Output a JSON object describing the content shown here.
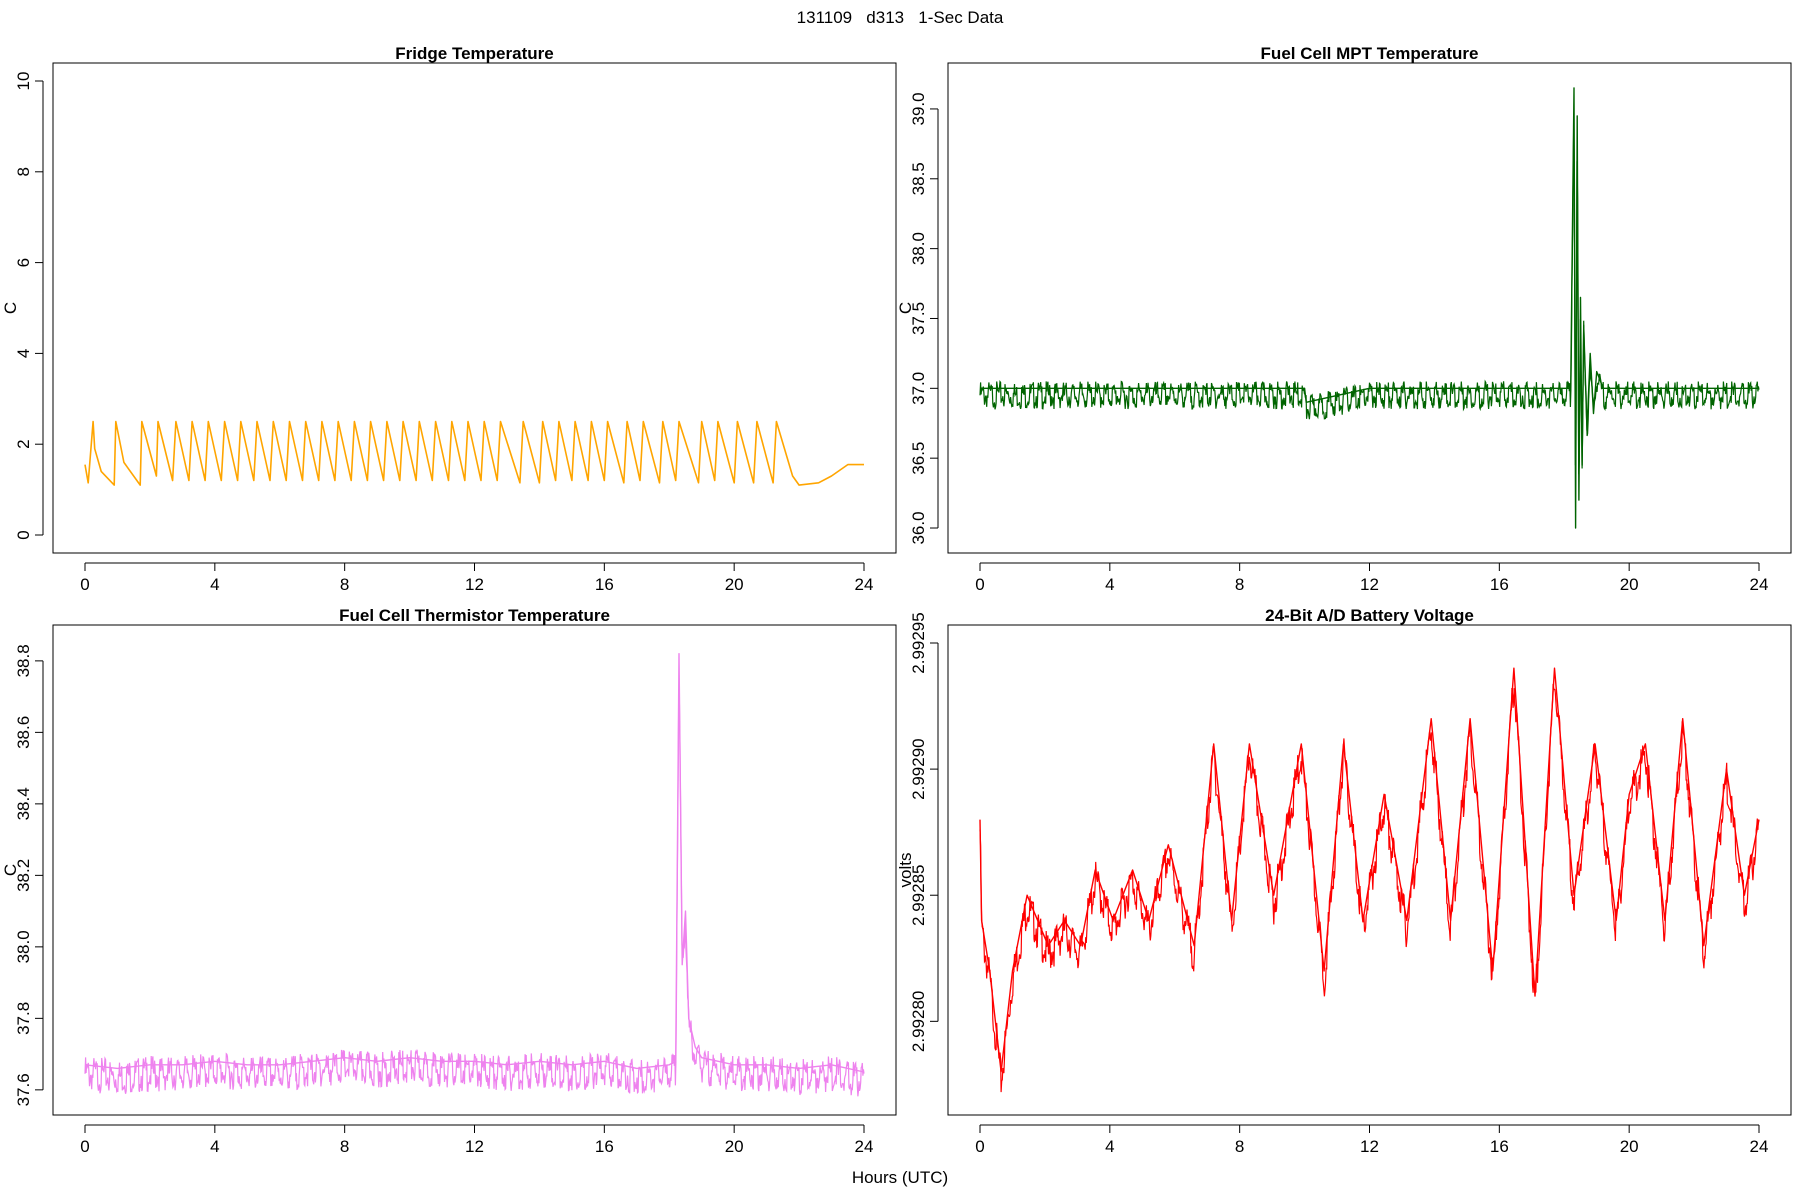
{
  "figure": {
    "title": "131109   d313   1-Sec Data",
    "xlabel": "Hours (UTC)"
  },
  "chart_data": [
    {
      "type": "line",
      "title": "Fridge Temperature",
      "ylabel": "C",
      "xlim": [
        0,
        24
      ],
      "ylim": [
        0,
        10
      ],
      "xticks": [
        0,
        4,
        8,
        12,
        16,
        20,
        24
      ],
      "yticks": [
        0,
        2,
        4,
        6,
        8,
        10
      ],
      "color": "#FFA500",
      "pattern": "refrigerator cycling sawtooth, peaks ~2.5 C decaying to ~1.1 C until ~21.8 h, then smooth rise to ~1.55 C",
      "x": [
        0,
        0.1,
        0.25,
        0.3,
        0.5,
        0.9,
        0.95,
        1.2,
        1.7,
        1.75,
        2.2,
        2.25,
        2.7,
        2.8,
        3.2,
        3.3,
        3.7,
        3.8,
        4.2,
        4.3,
        4.7,
        4.8,
        5.2,
        5.3,
        5.7,
        5.8,
        6.2,
        6.3,
        6.7,
        6.8,
        7.2,
        7.3,
        7.7,
        7.8,
        8.2,
        8.3,
        8.7,
        8.8,
        9.2,
        9.3,
        9.7,
        9.8,
        10.2,
        10.3,
        10.7,
        10.8,
        11.2,
        11.3,
        11.7,
        11.8,
        12.2,
        12.3,
        12.7,
        12.8,
        13.4,
        13.5,
        14.0,
        14.1,
        14.5,
        14.6,
        15.0,
        15.1,
        15.5,
        15.6,
        16.0,
        16.1,
        16.6,
        16.7,
        17.1,
        17.2,
        17.7,
        17.8,
        18.2,
        18.3,
        18.9,
        19.0,
        19.4,
        19.5,
        20.0,
        20.1,
        20.6,
        20.7,
        21.2,
        21.3,
        21.8,
        22.0,
        22.6,
        23.0,
        23.5,
        24.0
      ],
      "y": [
        1.55,
        1.15,
        2.5,
        1.9,
        1.4,
        1.1,
        2.5,
        1.6,
        1.1,
        2.5,
        1.3,
        2.5,
        1.2,
        2.5,
        1.2,
        2.5,
        1.2,
        2.5,
        1.2,
        2.5,
        1.2,
        2.5,
        1.2,
        2.5,
        1.2,
        2.5,
        1.2,
        2.5,
        1.2,
        2.5,
        1.2,
        2.5,
        1.2,
        2.5,
        1.2,
        2.5,
        1.2,
        2.5,
        1.2,
        2.5,
        1.2,
        2.5,
        1.2,
        2.5,
        1.2,
        2.5,
        1.2,
        2.5,
        1.2,
        2.5,
        1.2,
        2.5,
        1.2,
        2.5,
        1.15,
        2.5,
        1.15,
        2.5,
        1.2,
        2.5,
        1.2,
        2.5,
        1.2,
        2.5,
        1.2,
        2.5,
        1.15,
        2.5,
        1.2,
        2.5,
        1.15,
        2.5,
        1.2,
        2.5,
        1.15,
        2.5,
        1.2,
        2.5,
        1.15,
        2.5,
        1.15,
        2.5,
        1.15,
        2.5,
        1.3,
        1.1,
        1.15,
        1.3,
        1.55,
        1.55
      ]
    },
    {
      "type": "line",
      "title": "Fuel Cell MPT Temperature",
      "ylabel": "C",
      "xlim": [
        0,
        24
      ],
      "ylim": [
        35.95,
        39.2
      ],
      "xticks": [
        0,
        4,
        8,
        12,
        16,
        20,
        24
      ],
      "yticks": [
        36.0,
        36.5,
        37.0,
        37.5,
        38.0,
        38.5,
        39.0
      ],
      "ytick_labels": [
        "36.0",
        "36.5",
        "37.0",
        "37.5",
        "38.0",
        "38.5",
        "39.0"
      ],
      "color": "#006400",
      "pattern": "noisy flat ~37.0 C (band approx 36.93 to 37.07) with a decaying oscillation burst after ~18.2 h",
      "x": [
        0,
        2,
        4,
        6,
        8,
        10,
        10.05,
        12,
        14,
        16,
        18.2,
        18.3,
        18.35,
        18.4,
        18.45,
        18.5,
        18.55,
        18.6,
        18.7,
        18.8,
        18.9,
        19.0,
        19.2,
        20,
        22,
        24
      ],
      "y": [
        37.0,
        37.0,
        37.0,
        37.0,
        37.0,
        37.0,
        36.9,
        37.0,
        37.0,
        37.0,
        37.0,
        39.15,
        36.0,
        38.95,
        36.2,
        37.65,
        36.45,
        37.45,
        36.7,
        37.25,
        36.82,
        37.12,
        37.0,
        37.0,
        37.0,
        37.0
      ]
    },
    {
      "type": "line",
      "title": "Fuel Cell Thermistor Temperature",
      "ylabel": "C",
      "xlim": [
        0,
        24
      ],
      "ylim": [
        37.58,
        38.85
      ],
      "xticks": [
        0,
        4,
        8,
        12,
        16,
        20,
        24
      ],
      "yticks": [
        37.6,
        37.8,
        38.0,
        38.2,
        38.4,
        38.6,
        38.8
      ],
      "ytick_labels": [
        "37.6",
        "37.8",
        "38.0",
        "38.2",
        "38.4",
        "38.6",
        "38.8"
      ],
      "color": "#EE82EE",
      "pattern": "noisy band ~37.67 C with slow oscillation, sharp spike to ~38.82 C near 18.3 h",
      "x": [
        0,
        1,
        2,
        3,
        4,
        5,
        6,
        7,
        8,
        9,
        10,
        11,
        12,
        13,
        14,
        15,
        16,
        17,
        18,
        18.2,
        18.3,
        18.4,
        18.5,
        18.6,
        18.8,
        19,
        20,
        21,
        22,
        23,
        24
      ],
      "y": [
        37.67,
        37.66,
        37.67,
        37.67,
        37.68,
        37.67,
        37.67,
        37.68,
        37.69,
        37.68,
        37.69,
        37.68,
        37.68,
        37.67,
        37.68,
        37.67,
        37.68,
        37.66,
        37.67,
        37.68,
        38.82,
        37.95,
        38.1,
        37.8,
        37.72,
        37.69,
        37.67,
        37.67,
        37.66,
        37.67,
        37.65
      ]
    },
    {
      "type": "line",
      "title": "24-Bit A/D Battery Voltage",
      "ylabel": "volts",
      "xlim": [
        0,
        24
      ],
      "ylim": [
        2.99277,
        2.99295
      ],
      "xticks": [
        0,
        4,
        8,
        12,
        16,
        20,
        24
      ],
      "yticks": [
        2.9928,
        2.99285,
        2.9929,
        2.99295
      ],
      "ytick_labels": [
        "2.99280",
        "2.99285",
        "2.99290",
        "2.99295"
      ],
      "color": "#FF0000",
      "pattern": "daily-ish oscillation of increasing amplitude",
      "x": [
        0,
        0.05,
        0.3,
        0.65,
        1.0,
        1.45,
        2.1,
        2.6,
        3.1,
        3.55,
        4.1,
        4.7,
        5.2,
        5.8,
        6.6,
        7.2,
        7.75,
        8.3,
        9.05,
        9.9,
        10.6,
        11.2,
        11.8,
        12.45,
        13.15,
        13.9,
        14.5,
        15.1,
        15.8,
        16.45,
        17.1,
        17.7,
        18.3,
        18.95,
        19.6,
        20.0,
        20.5,
        21.1,
        21.65,
        22.3,
        23.0,
        23.55,
        24.0
      ],
      "y": [
        2.99288,
        2.99284,
        2.99282,
        2.99278,
        2.99282,
        2.99285,
        2.99283,
        2.99284,
        2.99283,
        2.99286,
        2.99284,
        2.99286,
        2.99284,
        2.99287,
        2.99283,
        2.99291,
        2.99284,
        2.99291,
        2.99285,
        2.99291,
        2.99282,
        2.99291,
        2.99284,
        2.99289,
        2.99284,
        2.99292,
        2.99284,
        2.99292,
        2.99282,
        2.99294,
        2.99281,
        2.99294,
        2.99285,
        2.99291,
        2.99284,
        2.99289,
        2.99291,
        2.99284,
        2.99292,
        2.99283,
        2.9929,
        2.99285,
        2.99288
      ]
    }
  ]
}
